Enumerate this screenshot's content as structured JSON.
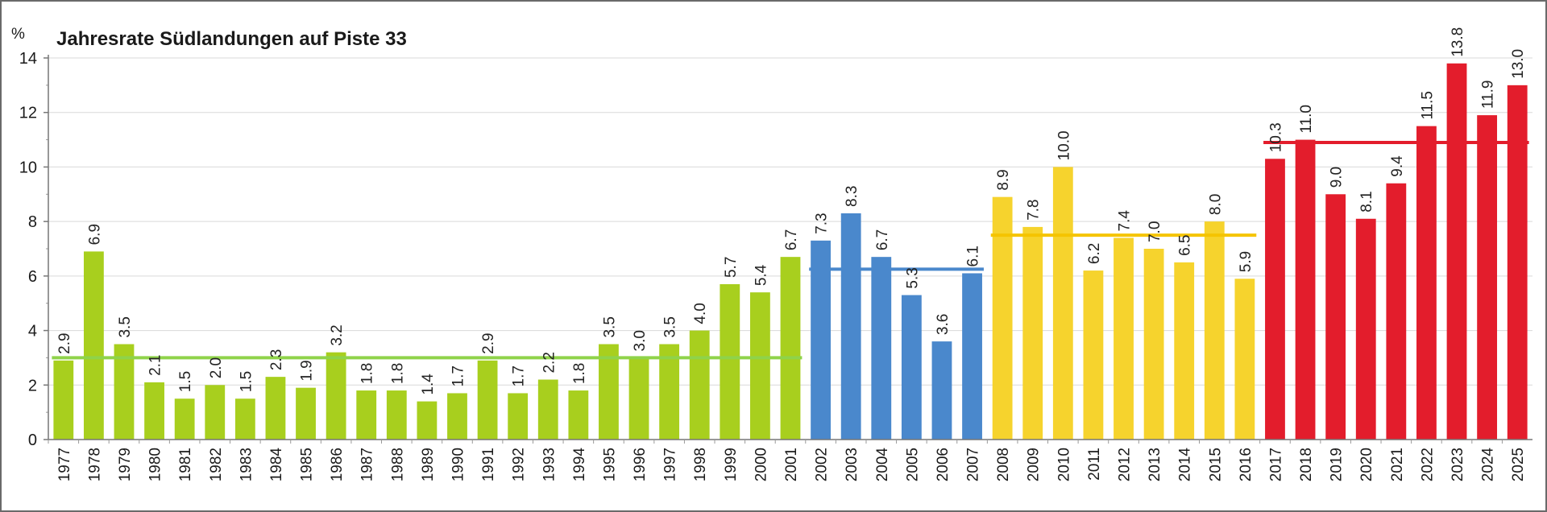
{
  "chart_data": {
    "type": "bar",
    "title": "Jahresrate Südlandungen auf Piste 33",
    "ylabel": "%",
    "xlabel": "",
    "ylim": [
      0,
      14
    ],
    "yticks": [
      0,
      2,
      4,
      6,
      8,
      10,
      12,
      14
    ],
    "grid": true,
    "categories": [
      "1977",
      "1978",
      "1979",
      "1980",
      "1981",
      "1982",
      "1983",
      "1984",
      "1985",
      "1986",
      "1987",
      "1988",
      "1989",
      "1990",
      "1991",
      "1992",
      "1993",
      "1994",
      "1995",
      "1996",
      "1997",
      "1998",
      "1999",
      "2000",
      "2001",
      "2002",
      "2003",
      "2004",
      "2005",
      "2006",
      "2007",
      "2008",
      "2009",
      "2010",
      "2011",
      "2012",
      "2013",
      "2014",
      "2015",
      "2016",
      "2017",
      "2018",
      "2019",
      "2020",
      "2021",
      "2022",
      "2023",
      "2024",
      "2025"
    ],
    "values": [
      2.9,
      6.9,
      3.5,
      2.1,
      1.5,
      2.0,
      1.5,
      2.3,
      1.9,
      3.2,
      1.8,
      1.8,
      1.4,
      1.7,
      2.9,
      1.7,
      2.2,
      1.8,
      3.5,
      3.0,
      3.5,
      4.0,
      5.7,
      5.4,
      6.7,
      7.3,
      8.3,
      6.7,
      5.3,
      3.6,
      6.1,
      8.9,
      7.8,
      10.0,
      6.2,
      7.4,
      7.0,
      6.5,
      8.0,
      5.9,
      10.3,
      11.0,
      9.0,
      8.1,
      9.4,
      11.5,
      13.8,
      11.9,
      13.0
    ],
    "value_labels": [
      "2.9",
      "6.9",
      "3.5",
      "2.1",
      "1.5",
      "2.0",
      "1.5",
      "2.3",
      "1.9",
      "3.2",
      "1.8",
      "1.8",
      "1.4",
      "1.7",
      "2.9",
      "1.7",
      "2.2",
      "1.8",
      "3.5",
      "3.0",
      "3.5",
      "4.0",
      "5.7",
      "5.4",
      "6.7",
      "7.3",
      "8.3",
      "6.7",
      "5.3",
      "3.6",
      "6.1",
      "8.9",
      "7.8",
      "10.0",
      "6.2",
      "7.4",
      "7.0",
      "6.5",
      "8.0",
      "5.9",
      "10.3",
      "11.0",
      "9.0",
      "8.1",
      "9.4",
      "11.5",
      "13.8",
      "11.9",
      "13.0"
    ],
    "periods": [
      {
        "from": "1977",
        "to": "2001",
        "color": "#a8cf1e",
        "mean_line": 3.0,
        "mean_color": "#8fd34a"
      },
      {
        "from": "2002",
        "to": "2007",
        "color": "#4a88cc",
        "mean_line": 6.25,
        "mean_color": "#4a88cc"
      },
      {
        "from": "2008",
        "to": "2016",
        "color": "#f6d32d",
        "mean_line": 7.5,
        "mean_color": "#f5c400"
      },
      {
        "from": "2017",
        "to": "2025",
        "color": "#e31d2c",
        "mean_line": 10.9,
        "mean_color": "#e31d2c"
      }
    ]
  }
}
